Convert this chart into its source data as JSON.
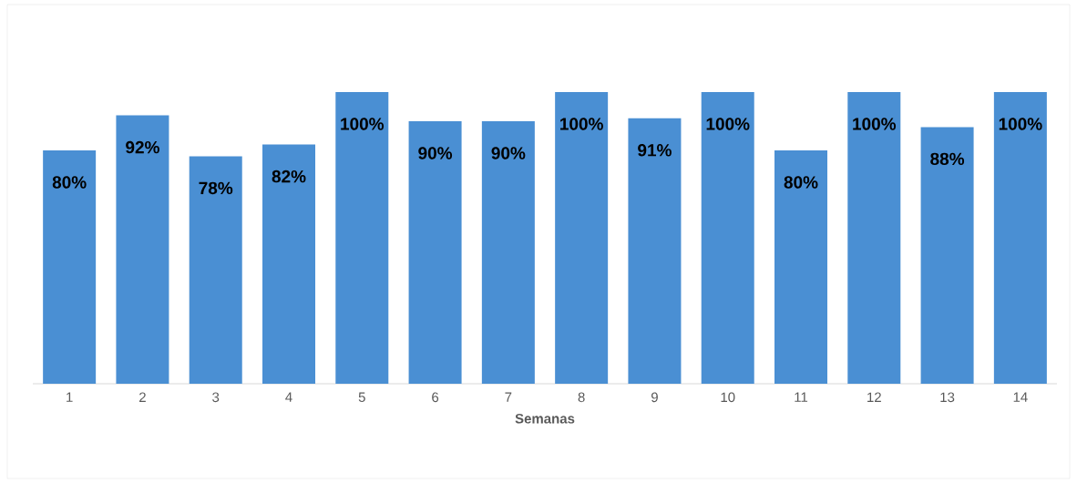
{
  "chart_data": {
    "type": "bar",
    "xlabel": "Semanas",
    "categories": [
      "1",
      "2",
      "3",
      "4",
      "5",
      "6",
      "7",
      "8",
      "9",
      "10",
      "11",
      "12",
      "13",
      "14"
    ],
    "values": [
      80,
      92,
      78,
      82,
      100,
      90,
      90,
      100,
      91,
      100,
      80,
      100,
      88,
      100
    ],
    "value_labels": [
      "80%",
      "92%",
      "78%",
      "82%",
      "100%",
      "90%",
      "90%",
      "100%",
      "91%",
      "100%",
      "80%",
      "100%",
      "88%",
      "100%"
    ],
    "color": "#4a8fd3",
    "ylim": [
      0,
      100
    ],
    "tick_labels": "x"
  }
}
